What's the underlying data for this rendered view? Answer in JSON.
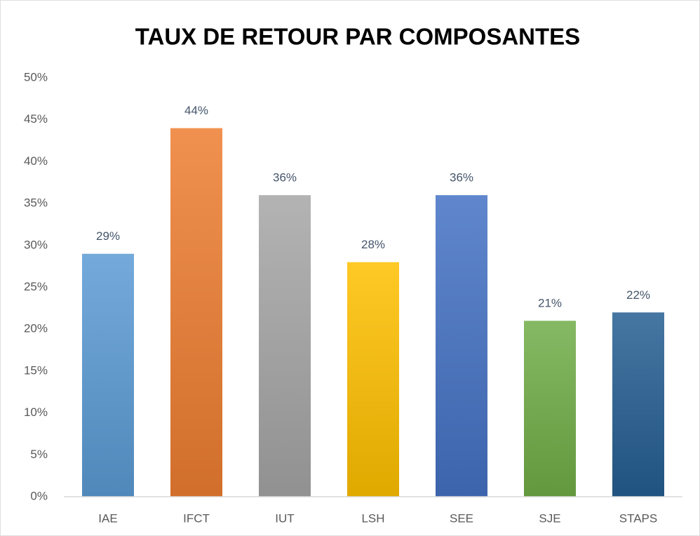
{
  "chart_data": {
    "type": "bar",
    "title": "TAUX DE RETOUR PAR COMPOSANTES",
    "categories": [
      "IAE",
      "IFCT",
      "IUT",
      "LSH",
      "SEE",
      "SJE",
      "STAPS"
    ],
    "values": [
      29,
      44,
      36,
      28,
      36,
      21,
      22
    ],
    "value_labels": [
      "29%",
      "44%",
      "36%",
      "28%",
      "36%",
      "21%",
      "22%"
    ],
    "colors": [
      "#5b9bd5",
      "#ed7d31",
      "#a5a5a5",
      "#ffc000",
      "#4472c4",
      "#70ad47",
      "#255e91"
    ],
    "ylim": [
      0,
      50
    ],
    "yticks": [
      {
        "value": 0,
        "label": "0%"
      },
      {
        "value": 5,
        "label": "5%"
      },
      {
        "value": 10,
        "label": "10%"
      },
      {
        "value": 15,
        "label": "15%"
      },
      {
        "value": 20,
        "label": "20%"
      },
      {
        "value": 25,
        "label": "25%"
      },
      {
        "value": 30,
        "label": "30%"
      },
      {
        "value": 35,
        "label": "35%"
      },
      {
        "value": 40,
        "label": "40%"
      },
      {
        "value": 45,
        "label": "45%"
      },
      {
        "value": 50,
        "label": "50%"
      }
    ],
    "grid": false
  }
}
